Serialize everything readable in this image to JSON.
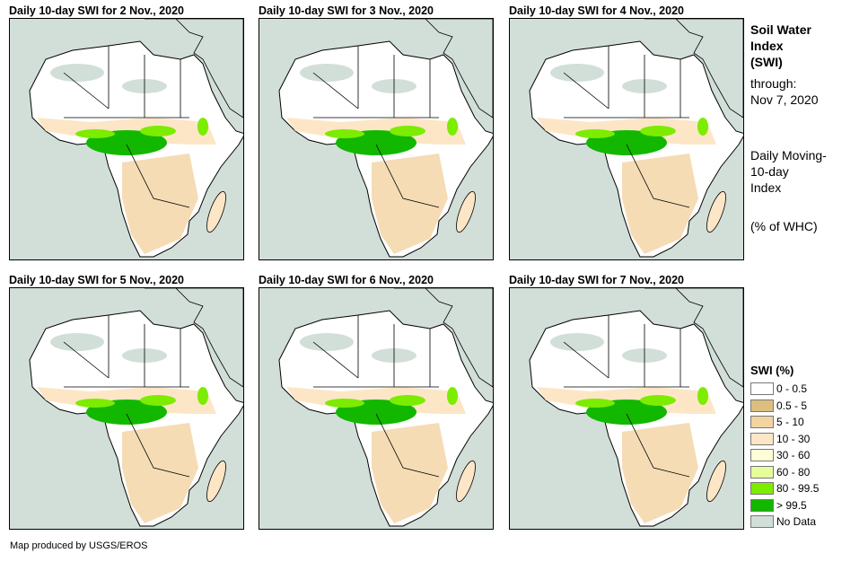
{
  "panels": [
    {
      "title": "Daily 10-day SWI for 2 Nov., 2020"
    },
    {
      "title": "Daily 10-day SWI for 3 Nov., 2020"
    },
    {
      "title": "Daily 10-day SWI for 4 Nov., 2020"
    },
    {
      "title": "Daily 10-day SWI for 5 Nov., 2020"
    },
    {
      "title": "Daily 10-day SWI for 6 Nov., 2020"
    },
    {
      "title": "Daily 10-day SWI for 7 Nov., 2020"
    }
  ],
  "side": {
    "title1": "Soil Water",
    "title2": "Index",
    "title3": "(SWI)",
    "through": "through:",
    "date": "Nov 7, 2020",
    "desc1": "Daily Moving-",
    "desc2": "10-day",
    "desc3": "Index",
    "unit": "(% of WHC)"
  },
  "legend": {
    "title": "SWI (%)",
    "items": [
      {
        "label": "0 - 0.5",
        "color": "#ffffff"
      },
      {
        "label": "0.5 - 5",
        "color": "#dcbf80"
      },
      {
        "label": "5 - 10",
        "color": "#f2d3a2"
      },
      {
        "label": "10 - 30",
        "color": "#fde6c6"
      },
      {
        "label": "30 - 60",
        "color": "#fdfdd8"
      },
      {
        "label": "60 - 80",
        "color": "#e6fd9c"
      },
      {
        "label": "80 - 99.5",
        "color": "#7cec00"
      },
      {
        "label": "> 99.5",
        "color": "#12b800"
      },
      {
        "label": "No Data",
        "color": "#d2dfd9"
      }
    ]
  },
  "footer": "Map produced by USGS/EROS"
}
